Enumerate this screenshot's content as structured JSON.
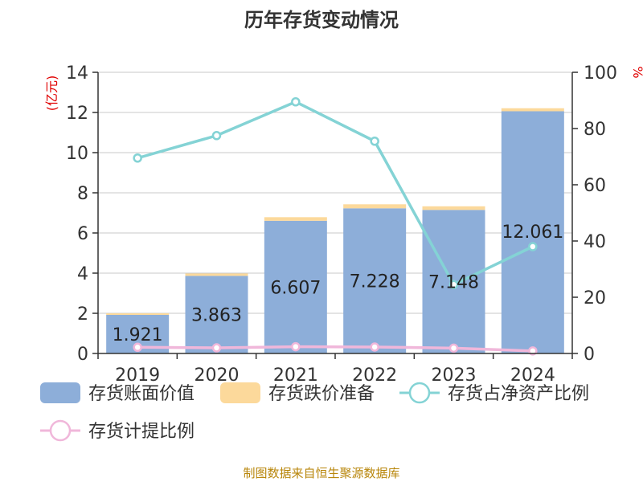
{
  "colors": {
    "book_value": "#8daed9",
    "impairment": "#fcd99b",
    "net_asset_ratio": "#84d3d5",
    "provision_ratio": "#f0b7da",
    "axis": "#333333",
    "grid": "#c8c8c8",
    "unit": "#e00000",
    "source": "#b8860b"
  },
  "chart_data": {
    "type": "bar",
    "title": "历年存货变动情况",
    "left_unit": "(亿元)",
    "right_unit": "%",
    "categories": [
      "2019",
      "2020",
      "2021",
      "2022",
      "2023",
      "2024"
    ],
    "ylim_left": [
      0,
      14
    ],
    "yticks_left": [
      "0",
      "2",
      "4",
      "6",
      "8",
      "10",
      "12",
      "14"
    ],
    "ylim_right": [
      0,
      100
    ],
    "yticks_right": [
      "0",
      "20",
      "40",
      "60",
      "80",
      "100"
    ],
    "grid": true,
    "legend_position": "bottom",
    "series": [
      {
        "name": "存货账面价值",
        "kind": "bar",
        "values": [
          1.921,
          3.863,
          6.607,
          7.228,
          7.148,
          12.061
        ],
        "labels": [
          "1.921",
          "3.863",
          "6.607",
          "7.228",
          "7.148",
          "12.061"
        ]
      },
      {
        "name": "存货跌价准备",
        "kind": "bar-stacked",
        "values": [
          0.08,
          0.12,
          0.18,
          0.2,
          0.18,
          0.15
        ]
      },
      {
        "name": "存货占净资产比例",
        "kind": "line",
        "axis": "right",
        "values": [
          69.5,
          77.5,
          89.5,
          75.5,
          24.5,
          38.0
        ]
      },
      {
        "name": "存货计提比例",
        "kind": "line",
        "axis": "right",
        "values": [
          2.2,
          2.0,
          2.4,
          2.3,
          1.9,
          0.9
        ]
      }
    ]
  },
  "source": "制图数据来自恒生聚源数据库"
}
